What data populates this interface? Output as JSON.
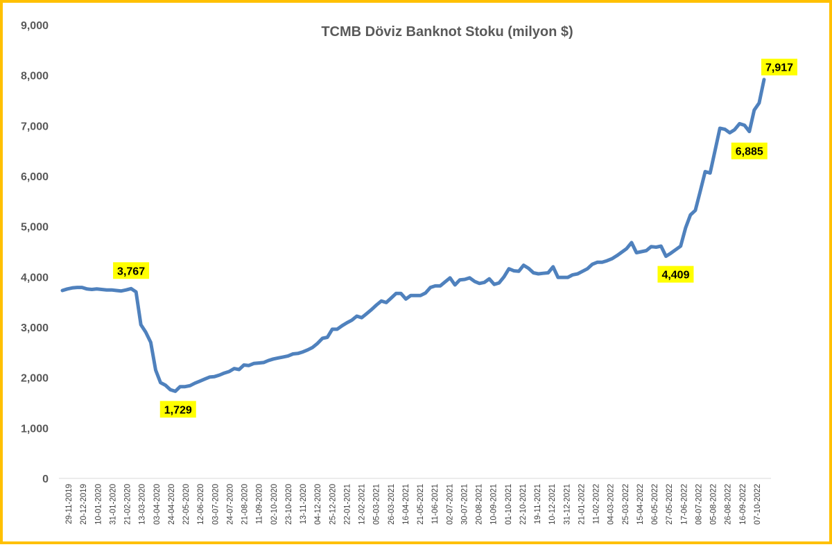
{
  "chart_data": {
    "type": "line",
    "title": "TCMB Döviz Banknot Stoku (milyon $)",
    "xlabel": "",
    "ylabel": "",
    "ylim": [
      0,
      9000
    ],
    "y_ticks": [
      "0",
      "1,000",
      "2,000",
      "3,000",
      "4,000",
      "5,000",
      "6,000",
      "7,000",
      "8,000",
      "9,000"
    ],
    "x_tick_labels": [
      "29-11-2019",
      "20-12-2019",
      "10-01-2020",
      "31-01-2020",
      "21-02-2020",
      "13-03-2020",
      "03-04-2020",
      "24-04-2020",
      "22-05-2020",
      "12-06-2020",
      "03-07-2020",
      "24-07-2020",
      "21-08-2020",
      "11-09-2020",
      "02-10-2020",
      "23-10-2020",
      "13-11-2020",
      "04-12-2020",
      "25-12-2020",
      "22-01-2021",
      "12-02-2021",
      "05-03-2021",
      "26-03-2021",
      "16-04-2021",
      "21-05-2021",
      "11-06-2021",
      "02-07-2021",
      "30-07-2021",
      "20-08-2021",
      "10-09-2021",
      "01-10-2021",
      "22-10-2021",
      "19-11-2021",
      "10-12-2021",
      "31-12-2021",
      "21-01-2022",
      "11-02-2022",
      "04-03-2022",
      "25-03-2022",
      "15-04-2022",
      "06-05-2022",
      "27-05-2022",
      "17-06-2022",
      "08-07-2022",
      "05-08-2022",
      "26-08-2022",
      "16-09-2022",
      "07-10-2022"
    ],
    "grid": false,
    "legend": "none",
    "line_color": "#4F81BD",
    "label_bg_color": "#FFFF00",
    "border_color": "#FFC000",
    "values": [
      3730,
      3760,
      3780,
      3790,
      3790,
      3760,
      3750,
      3760,
      3750,
      3740,
      3740,
      3730,
      3720,
      3740,
      3767,
      3700,
      3050,
      2900,
      2700,
      2150,
      1900,
      1850,
      1760,
      1729,
      1820,
      1820,
      1840,
      1890,
      1930,
      1970,
      2010,
      2020,
      2050,
      2090,
      2120,
      2180,
      2160,
      2250,
      2240,
      2280,
      2290,
      2300,
      2340,
      2370,
      2390,
      2410,
      2430,
      2470,
      2480,
      2510,
      2550,
      2600,
      2680,
      2780,
      2800,
      2960,
      2960,
      3030,
      3090,
      3140,
      3220,
      3190,
      3270,
      3350,
      3440,
      3520,
      3490,
      3580,
      3670,
      3670,
      3560,
      3630,
      3630,
      3630,
      3680,
      3790,
      3820,
      3820,
      3900,
      3980,
      3840,
      3940,
      3950,
      3980,
      3910,
      3870,
      3890,
      3960,
      3850,
      3880,
      4000,
      4160,
      4120,
      4110,
      4230,
      4170,
      4080,
      4060,
      4070,
      4080,
      4200,
      3990,
      3990,
      3990,
      4040,
      4060,
      4110,
      4160,
      4250,
      4290,
      4290,
      4320,
      4360,
      4420,
      4490,
      4560,
      4680,
      4480,
      4500,
      4520,
      4600,
      4590,
      4610,
      4409,
      4470,
      4540,
      4610,
      4970,
      5230,
      5320,
      5700,
      6090,
      6060,
      6500,
      6950,
      6930,
      6860,
      6920,
      7040,
      7010,
      6885,
      7310,
      7450,
      7917
    ],
    "annotations": [
      {
        "text": "3,767",
        "index": 14
      },
      {
        "text": "1,729",
        "index": 23
      },
      {
        "text": "4,409",
        "index": 123
      },
      {
        "text": "6,885",
        "index": 140
      },
      {
        "text": "7,917",
        "index": 143
      }
    ]
  }
}
